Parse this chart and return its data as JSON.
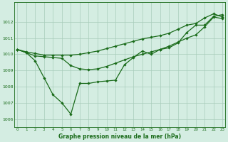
{
  "hours": [
    0,
    1,
    2,
    3,
    4,
    5,
    6,
    7,
    8,
    9,
    10,
    11,
    12,
    13,
    14,
    15,
    16,
    17,
    18,
    19,
    20,
    21,
    22,
    23
  ],
  "line_upper": [
    1010.3,
    1010.15,
    1010.05,
    1009.95,
    1009.95,
    1009.95,
    1009.95,
    1010.0,
    1010.1,
    1010.2,
    1010.35,
    1010.5,
    1010.65,
    1010.8,
    1010.95,
    1011.05,
    1011.15,
    1011.3,
    1011.55,
    1011.8,
    1011.9,
    1012.25,
    1012.5,
    1012.3
  ],
  "line_mid": [
    1010.3,
    1010.1,
    1009.9,
    1009.85,
    1009.8,
    1009.75,
    1009.3,
    1009.1,
    1009.05,
    1009.1,
    1009.25,
    1009.45,
    1009.65,
    1009.85,
    1010.0,
    1010.15,
    1010.3,
    1010.5,
    1010.75,
    1011.0,
    1011.2,
    1011.7,
    1012.3,
    1012.2
  ],
  "line_main": [
    1010.3,
    1010.1,
    1009.6,
    1008.55,
    1007.5,
    1007.0,
    1006.3,
    1008.2,
    1008.2,
    1008.3,
    1008.35,
    1008.4,
    1009.35,
    1009.8,
    1010.2,
    1010.0,
    1010.3,
    1010.4,
    1010.7,
    1011.35,
    1011.8,
    1011.8,
    1012.35,
    1012.45
  ],
  "bg_color": "#d4ede2",
  "grid_color_major": "#a8ccba",
  "grid_color_minor": "#c2dece",
  "line_color": "#1a6b1a",
  "title": "Graphe pression niveau de la mer (hPa)",
  "ylim_min": 1005.5,
  "ylim_max": 1013.2,
  "yticks": [
    1006,
    1007,
    1008,
    1009,
    1010,
    1011,
    1012
  ],
  "xlim_min": -0.3,
  "xlim_max": 23.3
}
